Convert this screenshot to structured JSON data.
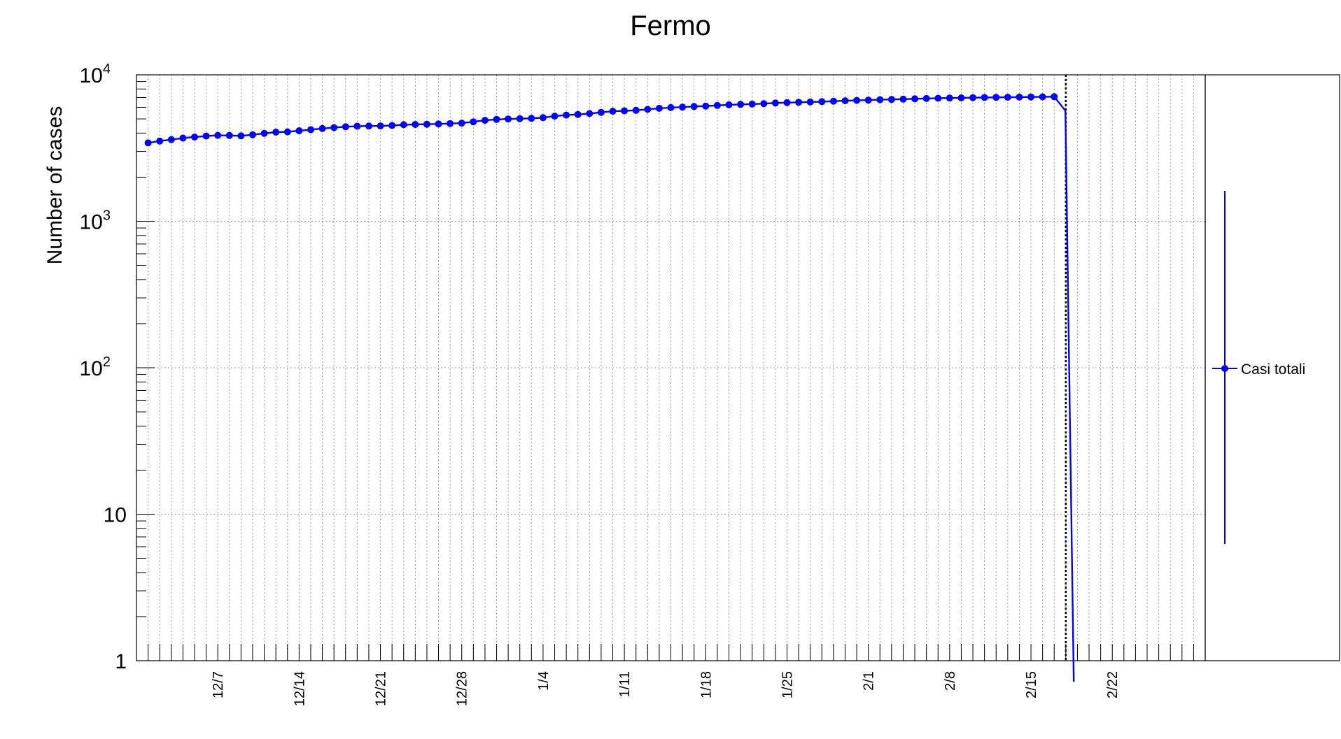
{
  "chart_data": {
    "type": "line",
    "title": "Fermo",
    "ylabel": "Number of cases",
    "xlabel": "",
    "y_scale": "log",
    "ylim": [
      1,
      10000
    ],
    "xlim": [
      "2020-11-30",
      "2021-03-02"
    ],
    "grid": true,
    "y_ticks": [
      {
        "value": 1,
        "label": "1"
      },
      {
        "value": 10,
        "label": "10"
      },
      {
        "value": 100,
        "label": "10",
        "exponent": "2"
      },
      {
        "value": 1000,
        "label": "10",
        "exponent": "3"
      },
      {
        "value": 10000,
        "label": "10",
        "exponent": "4"
      }
    ],
    "x_ticks": [
      {
        "date": "2020-12-07",
        "label": "12/7"
      },
      {
        "date": "2020-12-14",
        "label": "12/14"
      },
      {
        "date": "2020-12-21",
        "label": "12/21"
      },
      {
        "date": "2020-12-28",
        "label": "12/28"
      },
      {
        "date": "2021-01-04",
        "label": "1/4"
      },
      {
        "date": "2021-01-11",
        "label": "1/11"
      },
      {
        "date": "2021-01-18",
        "label": "1/18"
      },
      {
        "date": "2021-01-25",
        "label": "1/25"
      },
      {
        "date": "2021-02-01",
        "label": "2/1"
      },
      {
        "date": "2021-02-08",
        "label": "2/8"
      },
      {
        "date": "2021-02-15",
        "label": "2/15"
      },
      {
        "date": "2021-02-22",
        "label": "2/22"
      }
    ],
    "marker_line_date": "2021-02-18",
    "legend_position": "right",
    "series": [
      {
        "name": "Casi totali",
        "color": "#0000ff",
        "x": [
          "2020-12-01",
          "2020-12-02",
          "2020-12-03",
          "2020-12-04",
          "2020-12-05",
          "2020-12-06",
          "2020-12-07",
          "2020-12-08",
          "2020-12-09",
          "2020-12-10",
          "2020-12-11",
          "2020-12-12",
          "2020-12-13",
          "2020-12-14",
          "2020-12-15",
          "2020-12-16",
          "2020-12-17",
          "2020-12-18",
          "2020-12-19",
          "2020-12-20",
          "2020-12-21",
          "2020-12-22",
          "2020-12-23",
          "2020-12-24",
          "2020-12-25",
          "2020-12-26",
          "2020-12-27",
          "2020-12-28",
          "2020-12-29",
          "2020-12-30",
          "2020-12-31",
          "2021-01-01",
          "2021-01-02",
          "2021-01-03",
          "2021-01-04",
          "2021-01-05",
          "2021-01-06",
          "2021-01-07",
          "2021-01-08",
          "2021-01-09",
          "2021-01-10",
          "2021-01-11",
          "2021-01-12",
          "2021-01-13",
          "2021-01-14",
          "2021-01-15",
          "2021-01-16",
          "2021-01-17",
          "2021-01-18",
          "2021-01-19",
          "2021-01-20",
          "2021-01-21",
          "2021-01-22",
          "2021-01-23",
          "2021-01-24",
          "2021-01-25",
          "2021-01-26",
          "2021-01-27",
          "2021-01-28",
          "2021-01-29",
          "2021-01-30",
          "2021-01-31",
          "2021-02-01",
          "2021-02-02",
          "2021-02-03",
          "2021-02-04",
          "2021-02-05",
          "2021-02-06",
          "2021-02-07",
          "2021-02-08",
          "2021-02-09",
          "2021-02-10",
          "2021-02-11",
          "2021-02-12",
          "2021-02-13",
          "2021-02-14",
          "2021-02-15",
          "2021-02-16",
          "2021-02-17"
        ],
        "values": [
          3430,
          3530,
          3610,
          3700,
          3760,
          3820,
          3860,
          3850,
          3830,
          3900,
          3980,
          4060,
          4080,
          4150,
          4220,
          4300,
          4360,
          4420,
          4460,
          4470,
          4480,
          4510,
          4560,
          4580,
          4600,
          4620,
          4650,
          4680,
          4780,
          4890,
          4960,
          4990,
          5020,
          5040,
          5100,
          5220,
          5310,
          5360,
          5440,
          5540,
          5640,
          5680,
          5720,
          5810,
          5910,
          5970,
          6020,
          6080,
          6120,
          6180,
          6240,
          6280,
          6310,
          6360,
          6420,
          6460,
          6490,
          6520,
          6560,
          6610,
          6650,
          6690,
          6720,
          6760,
          6790,
          6820,
          6860,
          6890,
          6920,
          6940,
          6960,
          6980,
          7000,
          7010,
          7030,
          7040,
          7060,
          7070,
          7090
        ]
      }
    ]
  }
}
